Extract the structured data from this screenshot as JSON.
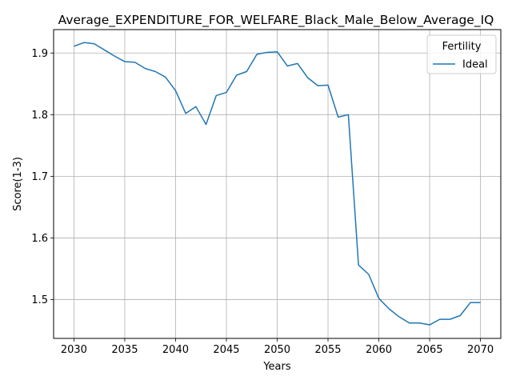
{
  "chart_data": {
    "type": "line",
    "title": "Average_EXPENDITURE_FOR_WELFARE_Black_Male_Below_Average_IQ",
    "xlabel": "Years",
    "ylabel": "Score(1-3)",
    "xlim": [
      2028,
      2072
    ],
    "ylim": [
      1.437,
      1.938
    ],
    "xticks": [
      2030,
      2035,
      2040,
      2045,
      2050,
      2055,
      2060,
      2065,
      2070
    ],
    "yticks": [
      1.5,
      1.6,
      1.7,
      1.8,
      1.9
    ],
    "ytick_labels": [
      "1.5",
      "1.6",
      "1.7",
      "1.8",
      "1.9"
    ],
    "grid": true,
    "legend": {
      "title": "Fertility",
      "placement": "top-right"
    },
    "series": [
      {
        "name": "Ideal",
        "color": "#1f77b4",
        "x": [
          2030,
          2031,
          2032,
          2033,
          2034,
          2035,
          2036,
          2037,
          2038,
          2039,
          2040,
          2041,
          2042,
          2043,
          2044,
          2045,
          2046,
          2047,
          2048,
          2049,
          2050,
          2051,
          2052,
          2053,
          2054,
          2055,
          2056,
          2057,
          2058,
          2059,
          2060,
          2061,
          2062,
          2063,
          2064,
          2065,
          2066,
          2067,
          2068,
          2069,
          2070
        ],
        "y": [
          1.911,
          1.917,
          1.915,
          1.905,
          1.895,
          1.886,
          1.885,
          1.875,
          1.87,
          1.861,
          1.839,
          1.802,
          1.813,
          1.784,
          1.831,
          1.836,
          1.864,
          1.87,
          1.898,
          1.901,
          1.902,
          1.879,
          1.883,
          1.86,
          1.847,
          1.848,
          1.796,
          1.8,
          1.556,
          1.541,
          1.502,
          1.485,
          1.472,
          1.462,
          1.462,
          1.459,
          1.468,
          1.468,
          1.474,
          1.495,
          1.495
        ]
      }
    ]
  }
}
